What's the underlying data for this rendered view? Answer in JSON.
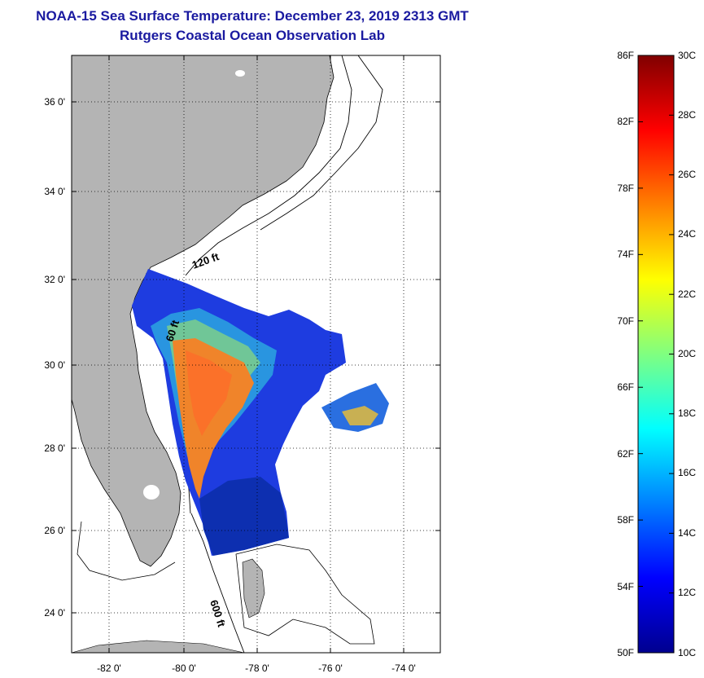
{
  "header": {
    "title": "NOAA-15 Sea Surface Temperature:  December 23, 2019 2313 GMT",
    "subtitle": "Rutgers Coastal Ocean Observation Lab"
  },
  "map": {
    "lon_ticks": [
      "-82 0'",
      "-80 0'",
      "-78 0'",
      "-76 0'",
      "-74 0'"
    ],
    "lat_ticks": [
      "36 0'",
      "34 0'",
      "32 0'",
      "30 0'",
      "28 0'",
      "26 0'",
      "24 0'"
    ],
    "contour_labels": {
      "c120": "120 ft",
      "c60": "60 ft",
      "c600": "600 ft"
    },
    "colors": {
      "land": "#b4b4b4",
      "ocean": "#ffffff"
    }
  },
  "colorbar": {
    "fahrenheit": [
      "86F",
      "82F",
      "78F",
      "74F",
      "70F",
      "66F",
      "62F",
      "58F",
      "54F",
      "50F"
    ],
    "celsius": [
      "30C",
      "28C",
      "26C",
      "24C",
      "22C",
      "20C",
      "18C",
      "16C",
      "14C",
      "12C",
      "10C"
    ],
    "stops": [
      "#00008f",
      "#0000ff",
      "#0080ff",
      "#00ffff",
      "#80ff80",
      "#ffff00",
      "#ff8000",
      "#ff0000",
      "#800000"
    ]
  }
}
